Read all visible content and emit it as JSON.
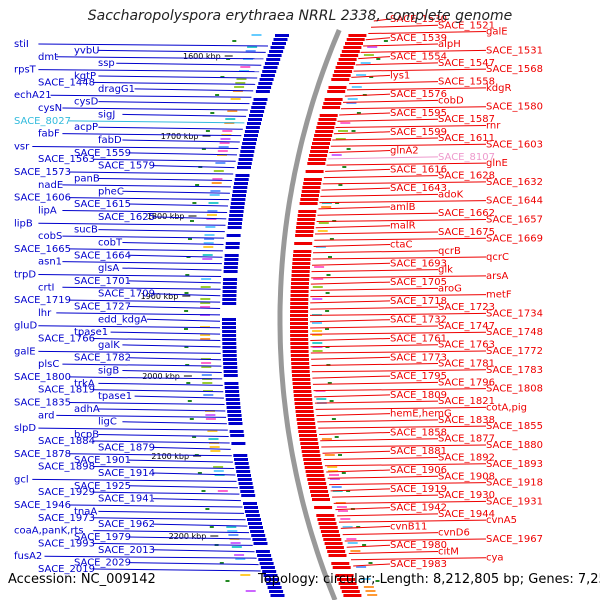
{
  "title": "Saccharopolyspora erythraea NRRL 2338, complete genome",
  "accession": "Accession: NC_009142",
  "topology": "Topology: circular; Length: 8,212,805 bp; Genes: 7,259",
  "colors": {
    "left_strand": "#0000cc",
    "right_strand": "#ee0000",
    "highlight_cyan": "#33bbdd",
    "highlight_pink": "#ee99cc",
    "backbone": "#999999",
    "tick": "#228822"
  },
  "ticks": [
    "1600 kbp",
    "1700 kbp",
    "1800 kbp",
    "1900 kbp",
    "2000 kbp",
    "2100 kbp",
    "2200 kbp"
  ],
  "left_labels": [
    "stiI",
    "yvbU",
    "dmt",
    "ssp",
    "rpsT",
    "kgtP",
    "SACE_1448",
    "dragG1",
    "echA21",
    "cysD",
    "cysN",
    "sigJ",
    "SACE_8027",
    "acpP",
    "fabF",
    "fabD",
    "vsr",
    "SACE_1559",
    "SACE_1563",
    "SACE_1579",
    "SACE_1573",
    "panB",
    "nadE",
    "pheC",
    "SACE_1606",
    "SACE_1615",
    "lipA",
    "SACE_1625",
    "lipB",
    "sucB",
    "cobS",
    "cobT",
    "SACE_1665",
    "SACE_1664",
    "asn1",
    "glsA",
    "trpD",
    "SACE_1701",
    "crtI",
    "SACE_1709",
    "SACE_1719",
    "SACE_1727",
    "lhr",
    "edd_kdgA",
    "gluD",
    "tpase1",
    "SACE_1766",
    "galK",
    "galE",
    "SACE_1782",
    "plsC",
    "sigB",
    "SACE_1800",
    "trkA",
    "SACE_1819",
    "tpase1",
    "SACE_1835",
    "adhA",
    "ard",
    "ligC",
    "slpD",
    "bcpB",
    "SACE_1884",
    "SACE_1879",
    "SACE_1878",
    "SACE_1901",
    "SACE_1898",
    "SACE_1914",
    "gcl",
    "SACE_1925",
    "SACE_1929",
    "SACE_1941",
    "SACE_1946",
    "tnaA",
    "SACE_1973",
    "SACE_1962",
    "coaA,panK,rts",
    "SACE_1979",
    "SACE_1993",
    "SACE_2013",
    "fusA2",
    "SACE_2029",
    "SACE_2019"
  ],
  "right_labels": [
    "SACE_1530",
    "SACE_1521",
    "galE",
    "SACE_1539",
    "alpH",
    "SACE_1531",
    "SACE_1554",
    "SACE_1547",
    "SACE_1568",
    "lys1",
    "SACE_1558",
    "kdgR",
    "SACE_1576",
    "cobD",
    "SACE_1580",
    "SACE_1595",
    "SACE_1587",
    "rnr",
    "SACE_1599",
    "SACE_1611",
    "SACE_1603",
    "glnA2",
    "SACE_8107",
    "glnE",
    "SACE_1616",
    "SACE_1628",
    "SACE_1632",
    "SACE_1643",
    "adoK",
    "SACE_1644",
    "amlB",
    "SACE_1662",
    "SACE_1657",
    "malR",
    "SACE_1675",
    "SACE_1669",
    "ctaC",
    "qcrB",
    "qcrC",
    "SACE_1693",
    "glk",
    "arsA",
    "SACE_1705",
    "aroG",
    "metF",
    "SACE_1718",
    "SACE_1723",
    "SACE_1734",
    "SACE_1732",
    "SACE_1747",
    "SACE_1748",
    "SACE_1761",
    "SACE_1763",
    "SACE_1772",
    "SACE_1773",
    "SACE_1781",
    "SACE_1783",
    "SACE_1795",
    "SACE_1796",
    "SACE_1808",
    "SACE_1809",
    "SACE_1821",
    "cotA,pig",
    "hemE,hemG",
    "SACE_1838",
    "SACE_1855",
    "SACE_1858",
    "SACE_1877",
    "SACE_1880",
    "SACE_1881",
    "SACE_1892",
    "SACE_1893",
    "SACE_1906",
    "SACE_1908",
    "SACE_1918",
    "SACE_1919",
    "SACE_1930",
    "SACE_1931",
    "SACE_1942",
    "SACE_1944",
    "cvnA5",
    "cvnB11",
    "cvnD6",
    "SACE_1967",
    "SACE_1980",
    "citM",
    "cya",
    "SACE_1983"
  ]
}
